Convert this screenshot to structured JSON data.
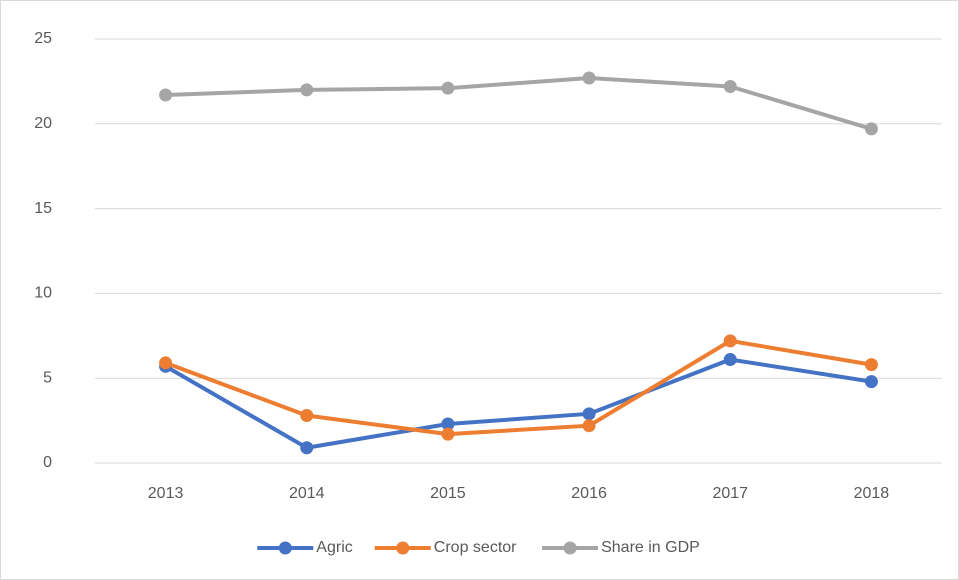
{
  "chart_data": {
    "type": "line",
    "categories": [
      "2013",
      "2014",
      "2015",
      "2016",
      "2017",
      "2018"
    ],
    "series": [
      {
        "name": "Agric",
        "color": "#4472c4",
        "values": [
          5.7,
          0.9,
          2.3,
          2.9,
          6.1,
          4.8
        ]
      },
      {
        "name": "Crop sector",
        "color": "#ed7d31",
        "values": [
          5.9,
          2.8,
          1.7,
          2.2,
          7.2,
          5.8
        ]
      },
      {
        "name": "Share in GDP",
        "color": "#a5a5a5",
        "values": [
          21.7,
          22.0,
          22.1,
          22.7,
          22.2,
          19.7
        ]
      }
    ],
    "ylim": [
      0,
      25
    ],
    "yticks": [
      0,
      5,
      10,
      15,
      20,
      25
    ],
    "grid": true,
    "legend": "bottom"
  }
}
